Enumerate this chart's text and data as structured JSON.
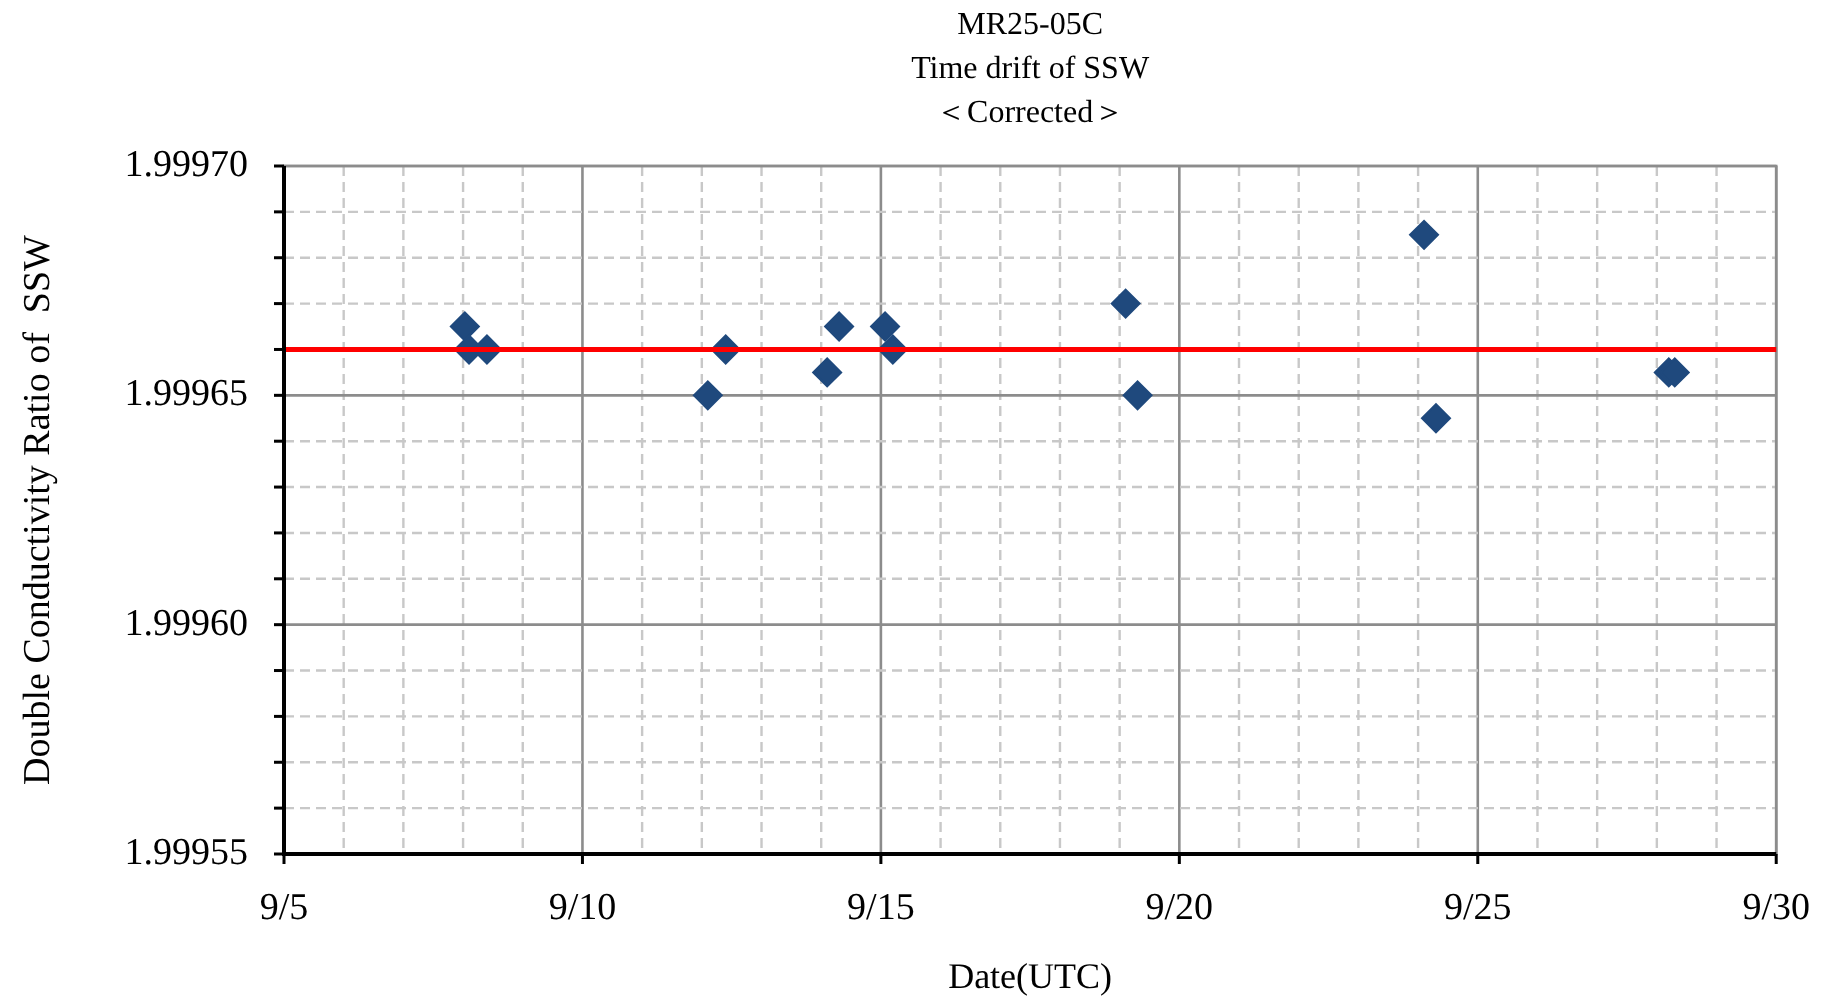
{
  "chart_data": {
    "type": "scatter",
    "title": "MR25-05C\nTime drift of SSW\n＜Corrected＞",
    "xlabel": "Date(UTC)",
    "ylabel": "Double Conductivity Ratio of  SSW",
    "series": [
      {
        "color": "#1f497d",
        "x": [
          "--09-08T00:43",
          "--09-08T02:24",
          "--09-08T09:36",
          "--09-12T02:24",
          "--09-12T09:36",
          "--09-14T02:24",
          "--09-14T07:12",
          "--09-15T01:41",
          "--09-15T04:48",
          "--09-19T02:24",
          "--09-19T07:12",
          "--09-24T02:24",
          "--09-24T07:12",
          "--09-28T04:48",
          "--09-28T07:12"
        ],
        "values": [
          1.999665,
          1.99966,
          1.99966,
          1.99965,
          1.99966,
          1.999655,
          1.999665,
          1.999665,
          1.99966,
          1.99967,
          1.99965,
          1.999685,
          1.999645,
          1.999655,
          1.999655
        ]
      }
    ],
    "marker": "diamond",
    "grid": true,
    "legend": false,
    "xlim": [
      "--09-05",
      "--09-30"
    ],
    "xticks": [
      {
        "value": "--09-05",
        "label": "9/5"
      },
      {
        "value": "--09-06",
        "label": null
      },
      {
        "value": "--09-07",
        "label": null
      },
      {
        "value": "--09-08",
        "label": null
      },
      {
        "value": "--09-09",
        "label": null
      },
      {
        "value": "--09-10",
        "label": "9/10"
      },
      {
        "value": "--09-11",
        "label": null
      },
      {
        "value": "--09-12",
        "label": null
      },
      {
        "value": "--09-13",
        "label": null
      },
      {
        "value": "--09-14",
        "label": null
      },
      {
        "value": "--09-15",
        "label": "9/15"
      },
      {
        "value": "--09-16",
        "label": null
      },
      {
        "value": "--09-17",
        "label": null
      },
      {
        "value": "--09-18",
        "label": null
      },
      {
        "value": "--09-19",
        "label": null
      },
      {
        "value": "--09-20",
        "label": "9/20"
      },
      {
        "value": "--09-21",
        "label": null
      },
      {
        "value": "--09-22",
        "label": null
      },
      {
        "value": "--09-23",
        "label": null
      },
      {
        "value": "--09-24",
        "label": null
      },
      {
        "value": "--09-25",
        "label": "9/25"
      },
      {
        "value": "--09-26",
        "label": null
      },
      {
        "value": "--09-27",
        "label": null
      },
      {
        "value": "--09-28",
        "label": null
      },
      {
        "value": "--09-29",
        "label": null
      },
      {
        "value": "--09-30",
        "label": "9/30"
      }
    ],
    "ylim": [
      1.99955,
      1.9997
    ],
    "yticks": [
      {
        "value": 1.99955,
        "label": "1.99955"
      },
      {
        "value": 1.99956,
        "label": null
      },
      {
        "value": 1.99957,
        "label": null
      },
      {
        "value": 1.99958,
        "label": null
      },
      {
        "value": 1.99959,
        "label": null
      },
      {
        "value": 1.9996,
        "label": "1.99960"
      },
      {
        "value": 1.99961,
        "label": null
      },
      {
        "value": 1.99962,
        "label": null
      },
      {
        "value": 1.99963,
        "label": null
      },
      {
        "value": 1.99964,
        "label": null
      },
      {
        "value": 1.99965,
        "label": "1.99965"
      },
      {
        "value": 1.99966,
        "label": null
      },
      {
        "value": 1.99967,
        "label": null
      },
      {
        "value": 1.99968,
        "label": null
      },
      {
        "value": 1.99969,
        "label": null
      },
      {
        "value": 1.9997,
        "label": "1.99970"
      }
    ],
    "ref_lines": [
      {
        "axis": "y",
        "value": 1.99966,
        "color": "#ff0000",
        "line_style": "solid"
      }
    ]
  }
}
